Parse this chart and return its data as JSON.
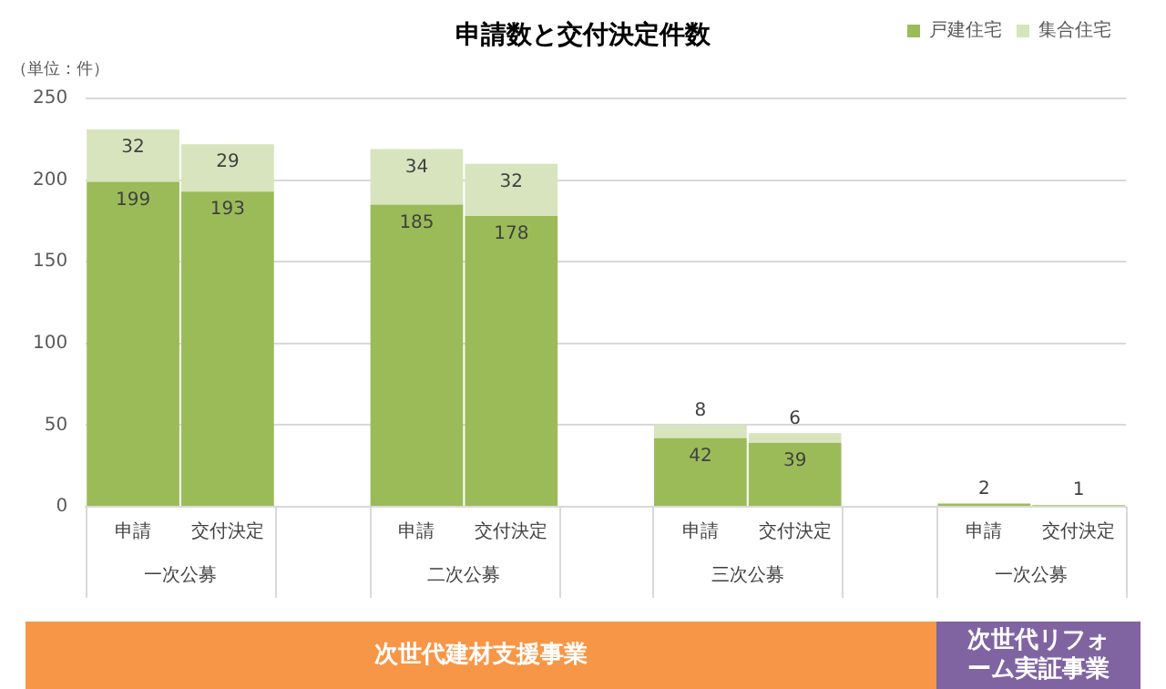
{
  "chart_data": {
    "type": "bar",
    "title": "申請数と交付決定件数",
    "ylabel": "（単位：件）",
    "stacked": true,
    "grid": "y",
    "legend": "top right",
    "categories": [
      "申請",
      "交付決定",
      null,
      "申請",
      "交付決定",
      null,
      "申請",
      "交付決定",
      null,
      "申請",
      "交付決定"
    ],
    "series": [
      {
        "name": "戸建住宅",
        "color": "#9bbb59",
        "values": [
          199,
          193,
          null,
          185,
          178,
          null,
          42,
          39,
          null,
          2,
          1
        ],
        "value_labels": [
          "199",
          "193",
          null,
          "185",
          "178",
          null,
          "42",
          "39",
          null,
          "2",
          "1"
        ]
      },
      {
        "name": "集合住宅",
        "color": "#d7e4bd",
        "values": [
          32,
          29,
          null,
          34,
          32,
          null,
          8,
          6,
          null,
          0,
          0
        ],
        "value_labels": [
          "32",
          "29",
          null,
          "34",
          "32",
          null,
          "8",
          "6",
          null,
          null,
          null
        ]
      }
    ],
    "ylim": [
      0,
      250
    ],
    "yticks": [
      0,
      50,
      100,
      150,
      200,
      250
    ],
    "annotations": [
      "一次公募",
      "二次公募",
      "三次公募",
      "一次公募",
      "次世代建材支援事業",
      "次世代リフォーム実証事業"
    ]
  }
}
